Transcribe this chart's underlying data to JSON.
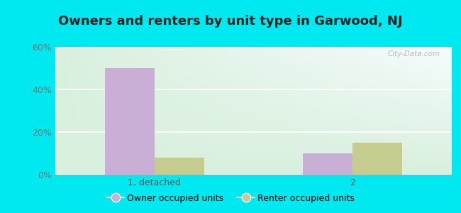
{
  "title": "Owners and renters by unit type in Garwood, NJ",
  "categories": [
    "1, detached",
    "2"
  ],
  "owner_values": [
    50,
    10
  ],
  "renter_values": [
    8,
    15
  ],
  "owner_color": "#c9aed6",
  "renter_color": "#c5cc8e",
  "owner_label": "Owner occupied units",
  "renter_label": "Renter occupied units",
  "ylim": [
    0,
    60
  ],
  "yticks": [
    0,
    20,
    40,
    60
  ],
  "ytick_labels": [
    "0%",
    "20%",
    "40%",
    "60%"
  ],
  "background_color": "#00e8f0",
  "plot_bg_color_topleft": "#d8eedf",
  "plot_bg_color_topright": "#eef8f8",
  "plot_bg_color_bottomleft": "#d8eedf",
  "plot_bg_color_bottomright": "#ffffff",
  "bar_width": 0.25,
  "title_fontsize": 13,
  "tick_fontsize": 9,
  "watermark": "City-Data.com"
}
